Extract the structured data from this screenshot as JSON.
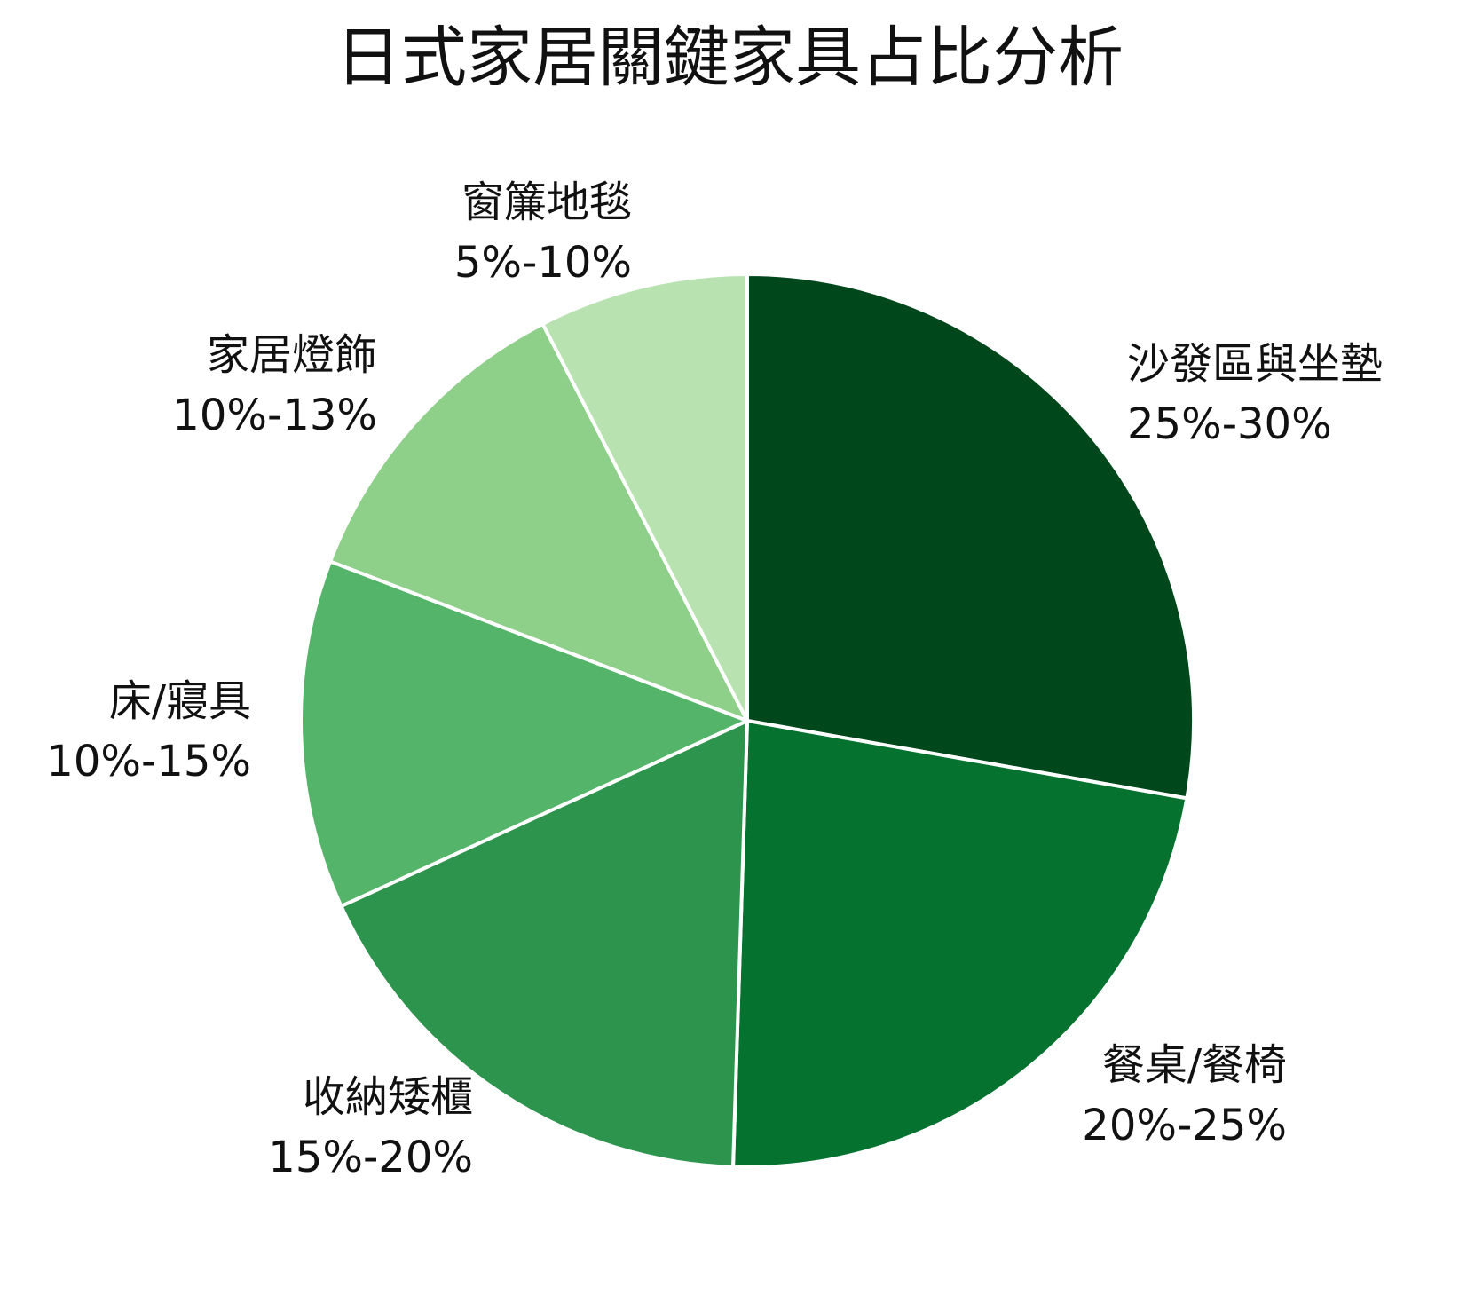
{
  "chart_data": {
    "type": "pie",
    "title": "日式家居關鍵家具占比分析",
    "slices": [
      {
        "name": "沙發區與坐墊",
        "range_label": "25%-30%",
        "value": 27.5,
        "color": "#00471c"
      },
      {
        "name": "餐桌/餐椅",
        "range_label": "20%-25%",
        "value": 22.5,
        "color": "#067230"
      },
      {
        "name": "收納矮櫃",
        "range_label": "15%-20%",
        "value": 17.5,
        "color": "#2d944d"
      },
      {
        "name": "床/寢具",
        "range_label": "10%-15%",
        "value": 12.5,
        "color": "#54b469"
      },
      {
        "name": "家居燈飾",
        "range_label": "10%-13%",
        "value": 11.5,
        "color": "#8ecf89"
      },
      {
        "name": "窗簾地毯",
        "range_label": "5%-10%",
        "value": 7.5,
        "color": "#b8e3b1"
      }
    ],
    "start_angle_deg": 0,
    "direction": "clockwise",
    "legend": "none",
    "labels": "outside"
  }
}
